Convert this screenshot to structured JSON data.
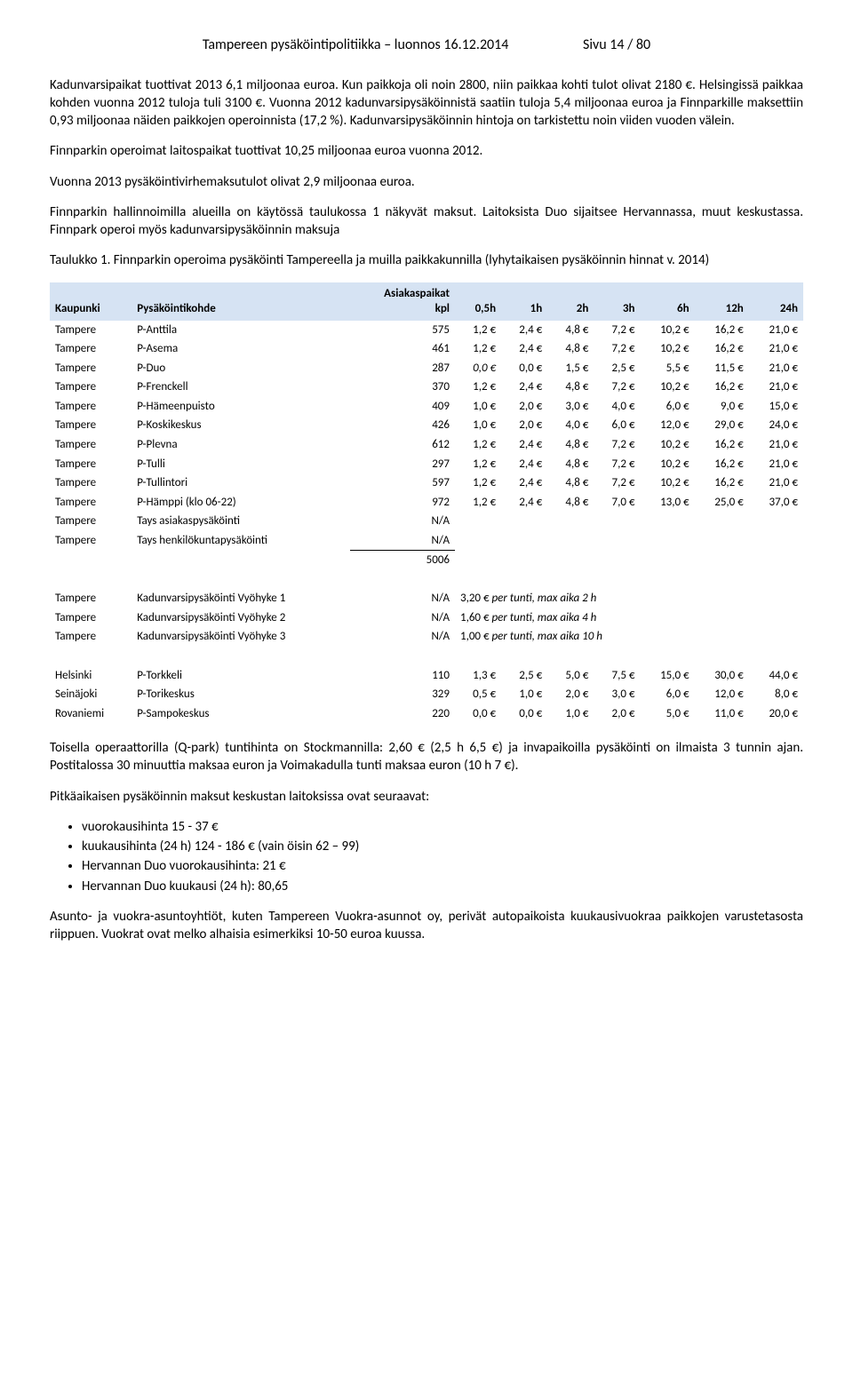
{
  "header": {
    "left": "Tampereen pysäköintipolitiikka – luonnos 16.12.2014",
    "right": "Sivu 14 / 80"
  },
  "para1": "Kadunvarsipaikat tuottivat 2013 6,1 miljoonaa euroa. Kun paikkoja oli noin 2800, niin paikkaa kohti tulot olivat 2180 €. Helsingissä paikkaa kohden vuonna 2012 tuloja tuli 3100 €. Vuonna 2012 kadunvarsipysäköinnistä saatiin tuloja 5,4 miljoonaa euroa ja Finnparkille maksettiin 0,93 miljoonaa näiden paikkojen operoinnista (17,2 %). Kadunvarsipysäköinnin hintoja on tarkistettu noin viiden vuoden välein.",
  "para2": "Finnparkin operoimat laitospaikat tuottivat 10,25 miljoonaa euroa vuonna 2012.",
  "para3": "Vuonna 2013 pysäköintivirhemaksutulot olivat 2,9 miljoonaa euroa.",
  "para4": "Finnparkin hallinnoimilla alueilla on käytössä taulukossa 1 näkyvät maksut. Laitoksista Duo sijaitsee Hervannassa, muut keskustassa.  Finnpark operoi myös kadunvarsipysäköinnin maksuja",
  "table_caption": "Taulukko 1. Finnparkin operoima pysäköinti Tampereella ja muilla paikkakunnilla (lyhytaikaisen pysäköinnin hinnat v. 2014)",
  "headers": {
    "city": "Kaupunki",
    "loc": "Pysäköintikohde",
    "asiakas1": "Asiakaspaikat",
    "asiakas2": "kpl",
    "h05": "0,5h",
    "h1": "1h",
    "h2": "2h",
    "h3": "3h",
    "h6": "6h",
    "h12": "12h",
    "h24": "24h"
  },
  "rows": [
    {
      "city": "Tampere",
      "loc": "P-Anttila",
      "kpl": "575",
      "p": [
        "1,2 €",
        "2,4 €",
        "4,8 €",
        "7,2 €",
        "10,2 €",
        "16,2 €",
        "21,0 €"
      ]
    },
    {
      "city": "Tampere",
      "loc": "P-Asema",
      "kpl": "461",
      "p": [
        "1,2 €",
        "2,4 €",
        "4,8 €",
        "7,2 €",
        "10,2 €",
        "16,2 €",
        "21,0 €"
      ]
    },
    {
      "city": "Tampere",
      "loc": "P-Duo",
      "kpl": "287",
      "p": [
        "0,0 €",
        "0,0 €",
        "1,5 €",
        "2,5 €",
        "5,5 €",
        "11,5 €",
        "21,0 €"
      ],
      "italic0": true
    },
    {
      "city": "Tampere",
      "loc": "P-Frenckell",
      "kpl": "370",
      "p": [
        "1,2 €",
        "2,4 €",
        "4,8 €",
        "7,2 €",
        "10,2 €",
        "16,2 €",
        "21,0 €"
      ]
    },
    {
      "city": "Tampere",
      "loc": "P-Hämeenpuisto",
      "kpl": "409",
      "p": [
        "1,0 €",
        "2,0 €",
        "3,0 €",
        "4,0 €",
        "6,0 €",
        "9,0 €",
        "15,0 €"
      ]
    },
    {
      "city": "Tampere",
      "loc": "P-Koskikeskus",
      "kpl": "426",
      "p": [
        "1,0 €",
        "2,0 €",
        "4,0 €",
        "6,0 €",
        "12,0 €",
        "29,0 €",
        "24,0 €"
      ]
    },
    {
      "city": "Tampere",
      "loc": "P-Plevna",
      "kpl": "612",
      "p": [
        "1,2 €",
        "2,4 €",
        "4,8 €",
        "7,2 €",
        "10,2 €",
        "16,2 €",
        "21,0 €"
      ]
    },
    {
      "city": "Tampere",
      "loc": "P-Tulli",
      "kpl": "297",
      "p": [
        "1,2 €",
        "2,4 €",
        "4,8 €",
        "7,2 €",
        "10,2 €",
        "16,2 €",
        "21,0 €"
      ]
    },
    {
      "city": "Tampere",
      "loc": "P-Tullintori",
      "kpl": "597",
      "p": [
        "1,2 €",
        "2,4 €",
        "4,8 €",
        "7,2 €",
        "10,2 €",
        "16,2 €",
        "21,0 €"
      ]
    },
    {
      "city": "Tampere",
      "loc": "P-Hämppi (klo 06-22)",
      "kpl": "972",
      "p": [
        "1,2 €",
        "2,4 €",
        "4,8 €",
        "7,0 €",
        "13,0 €",
        "25,0 €",
        "37,0 €"
      ]
    },
    {
      "city": "Tampere",
      "loc": "Tays asiakaspysäköinti",
      "kpl": "N/A",
      "p": [
        "",
        "",
        "",
        "",
        "",
        "",
        ""
      ]
    },
    {
      "city": "Tampere",
      "loc": "Tays henkilökuntapysäköinti",
      "kpl": "N/A",
      "p": [
        "",
        "",
        "",
        "",
        "",
        "",
        ""
      ]
    }
  ],
  "sum_kpl": "5006",
  "zone_rows": [
    {
      "city": "Tampere",
      "loc": "Kadunvarsipysäköinti Vyöhyke 1",
      "kpl": "N/A",
      "note": "3,20 €  per tunti, max aika 2 h"
    },
    {
      "city": "Tampere",
      "loc": "Kadunvarsipysäköinti Vyöhyke 2",
      "kpl": "N/A",
      "note": "1,60 €  per tunti, max aika 4 h"
    },
    {
      "city": "Tampere",
      "loc": "Kadunvarsipysäköinti Vyöhyke 3",
      "kpl": "N/A",
      "note": "1,00 €  per tunti, max aika 10 h"
    }
  ],
  "other_rows": [
    {
      "city": "Helsinki",
      "loc": "P-Torkkeli",
      "kpl": "110",
      "p": [
        "1,3 €",
        "2,5 €",
        "5,0 €",
        "7,5 €",
        "15,0 €",
        "30,0 €",
        "44,0 €"
      ]
    },
    {
      "city": "Seinäjoki",
      "loc": "P-Torikeskus",
      "kpl": "329",
      "p": [
        "0,5 €",
        "1,0 €",
        "2,0 €",
        "3,0 €",
        "6,0 €",
        "12,0 €",
        "8,0 €"
      ]
    },
    {
      "city": "Rovaniemi",
      "loc": "P-Sampokeskus",
      "kpl": "220",
      "p": [
        "0,0 €",
        "0,0 €",
        "1,0 €",
        "2,0 €",
        "5,0 €",
        "11,0 €",
        "20,0 €"
      ]
    }
  ],
  "para5": "Toisella operaattorilla (Q-park) tuntihinta on Stockmannilla: 2,60 € (2,5 h 6,5 €) ja invapaikoilla pysäköinti on ilmaista 3 tunnin ajan. Postitalossa 30 minuuttia maksaa euron ja Voimakadulla tunti maksaa euron (10 h 7 €).",
  "para6": "Pitkäaikaisen pysäköinnin maksut keskustan laitoksissa ovat seuraavat:",
  "bullets": [
    "vuorokausihinta 15 - 37 €",
    "kuukausihinta (24 h) 124 - 186 € (vain öisin 62 – 99)",
    "Hervannan Duo vuorokausihinta: 21 €",
    "Hervannan Duo kuukausi (24 h): 80,65"
  ],
  "para7": "Asunto- ja vuokra-asuntoyhtiöt, kuten Tampereen Vuokra-asunnot oy, perivät autopaikoista kuukausivuokraa paikkojen varustetasosta riippuen. Vuokrat ovat melko alhaisia esimerkiksi 10-50 euroa kuussa."
}
